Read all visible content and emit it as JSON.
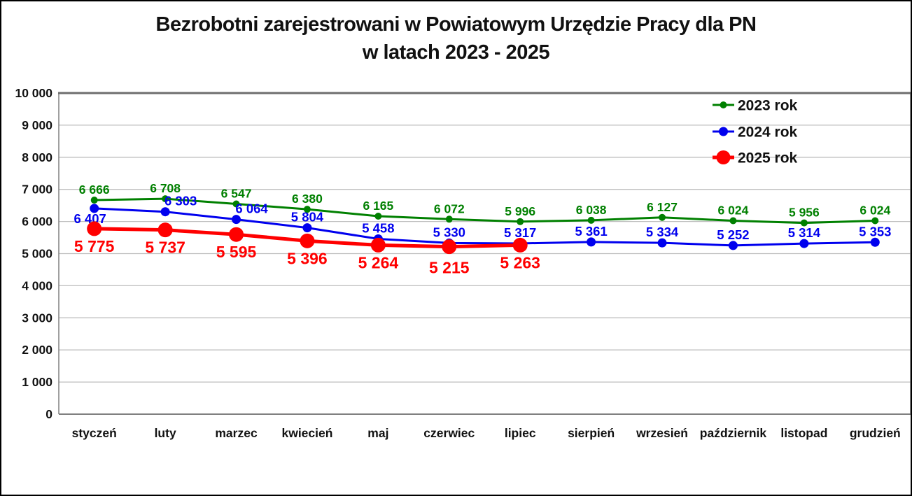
{
  "title": {
    "line1": "Bezrobotni zarejestrowani w Powiatowym Urzędzie Pracy dla PN",
    "line2": "w latach 2023 - 2025"
  },
  "chart_data": {
    "type": "line",
    "categories": [
      "styczeń",
      "luty",
      "marzec",
      "kwiecień",
      "maj",
      "czerwiec",
      "lipiec",
      "sierpień",
      "wrzesień",
      "październik",
      "listopad",
      "grudzień"
    ],
    "series": [
      {
        "name": "2023 rok",
        "color": "#008000",
        "line_width": 3,
        "marker_radius": 5,
        "label_font_size": 17.5,
        "label_offset": [
          0,
          -9
        ],
        "label_overrides": {},
        "values": [
          6666,
          6708,
          6547,
          6380,
          6165,
          6072,
          5996,
          6038,
          6127,
          6024,
          5956,
          6024
        ]
      },
      {
        "name": "2024 rok",
        "color": "#0000EE",
        "line_width": 3,
        "marker_radius": 6.5,
        "label_font_size": 18.5,
        "label_offset": [
          0,
          -9
        ],
        "label_overrides": {
          "0": [
            -6,
            21
          ],
          "1": [
            22,
            -9
          ],
          "2": [
            22,
            -9
          ]
        },
        "values": [
          6407,
          6303,
          6064,
          5804,
          5458,
          5330,
          5317,
          5361,
          5334,
          5252,
          5314,
          5353
        ]
      },
      {
        "name": "2025 rok",
        "color": "#FF0000",
        "line_width": 5,
        "marker_radius": 10.5,
        "label_font_size": 23,
        "label_offset": [
          0,
          33
        ],
        "label_overrides": {
          "5": [
            0,
            38
          ]
        },
        "values": [
          5775,
          5737,
          5595,
          5396,
          5264,
          5215,
          5263
        ]
      }
    ],
    "ylim": [
      0,
      10000
    ],
    "ytick_step": 1000,
    "ytick_labels": [
      "0",
      "1 000",
      "2 000",
      "3 000",
      "4 000",
      "5 000",
      "6 000",
      "7 000",
      "8 000",
      "9 000",
      "10 000"
    ],
    "grid": true,
    "legend_position": "top-right",
    "legend_labels": [
      "2023 rok",
      "2024 rok",
      "2025 rok"
    ]
  },
  "colors": {
    "gridline": "#BFBFBF",
    "axis": "#808080",
    "plot_top_border": "#6E6E6E",
    "title_text": "#111111",
    "axis_text": "#111111",
    "legend_text": "#111111",
    "background": "#FFFFFF",
    "frame": "#000000"
  }
}
